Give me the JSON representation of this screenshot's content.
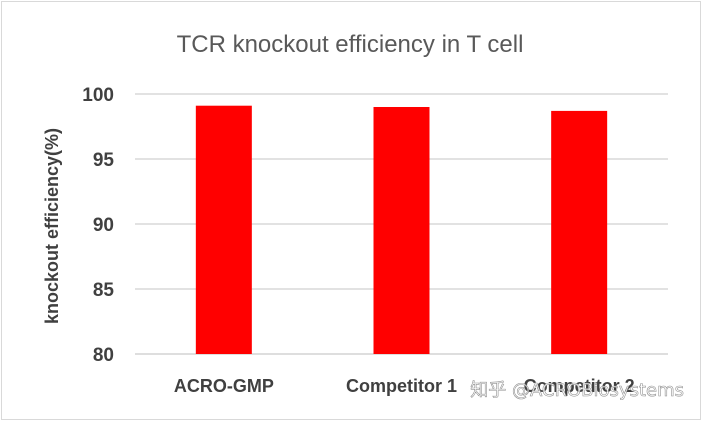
{
  "chart_data": {
    "type": "bar",
    "title": "TCR knockout efficiency in T cell",
    "xlabel": "",
    "ylabel": "knockout efficiency(%)",
    "categories": [
      "ACRO-GMP",
      "Competitor 1",
      "Competitor 2"
    ],
    "values": [
      99.1,
      99.0,
      98.7
    ],
    "ylim": [
      80,
      100
    ],
    "yticks": [
      "80",
      "85",
      "90",
      "95",
      "100"
    ],
    "grid": true,
    "legend": "none",
    "bar_color": "#ff0000",
    "grid_color": "#d9d9d9"
  },
  "watermark": "知乎 @ACROBiosystems"
}
